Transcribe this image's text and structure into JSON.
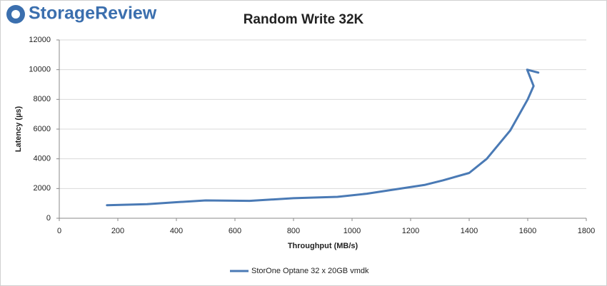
{
  "logo": "StorageReview",
  "chart_data": {
    "type": "line",
    "title": "Random Write 32K",
    "x_label": "Throughput (MB/s)",
    "y_label": "Latency (µs)",
    "xlim": [
      0,
      1800
    ],
    "xticks": [
      0,
      200,
      400,
      600,
      800,
      1000,
      1200,
      1400,
      1600,
      1800
    ],
    "ylim": [
      0,
      12000
    ],
    "yticks": [
      0,
      2000,
      4000,
      6000,
      8000,
      10000,
      12000
    ],
    "grid": true,
    "legend": "bottom",
    "series": [
      {
        "name": "StorOne Optane 32 x 20GB vmdk",
        "color": "#4a7ab5",
        "x": [
          163,
          300,
          400,
          500,
          650,
          800,
          950,
          1050,
          1150,
          1250,
          1310,
          1400,
          1460,
          1540,
          1600,
          1620,
          1598,
          1636
        ],
        "values": [
          880,
          950,
          1080,
          1200,
          1170,
          1350,
          1440,
          1650,
          1950,
          2250,
          2550,
          3050,
          4000,
          5900,
          8000,
          8900,
          10000,
          9800
        ]
      }
    ]
  }
}
